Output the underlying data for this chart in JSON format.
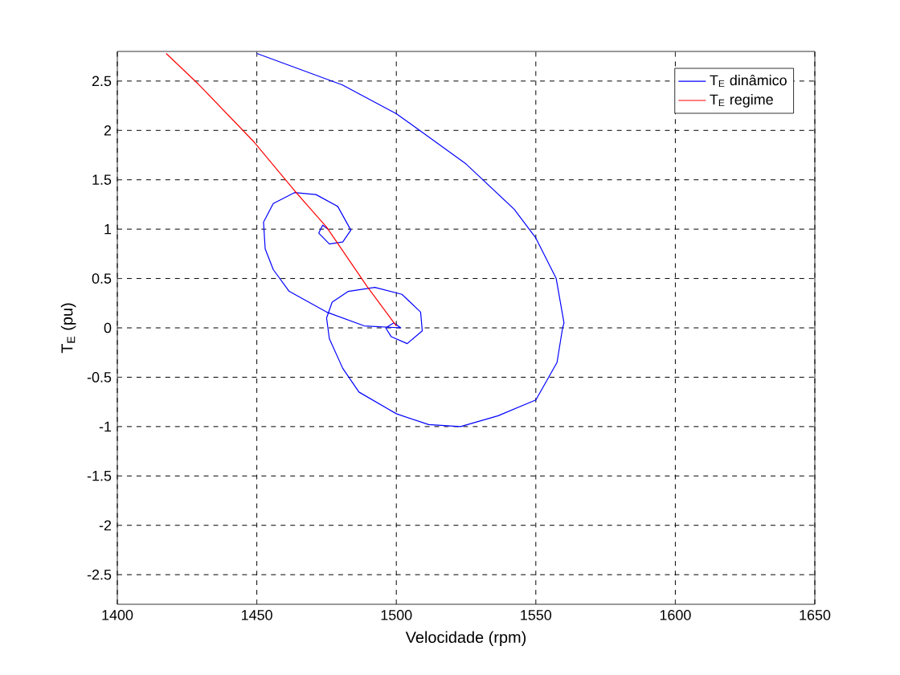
{
  "chart_data": {
    "type": "line",
    "xlabel": "Velocidade (rpm)",
    "ylabel": "T$_{E}$ (pu)",
    "xlim": [
      1400,
      1650
    ],
    "ylim": [
      -2.8,
      2.8
    ],
    "xticks": [
      1400,
      1450,
      1500,
      1550,
      1600,
      1650
    ],
    "yticks": [
      -2.5,
      -2,
      -1.5,
      -1,
      -0.5,
      0,
      0.5,
      1,
      1.5,
      2,
      2.5
    ],
    "grid": true,
    "legend": "top right",
    "series": [
      {
        "name": "T$_{E}$ dinâmico",
        "color": "#0000ff",
        "x": [
          1450,
          1480.7,
          1500,
          1525,
          1542.3,
          1550,
          1557.3,
          1560.1,
          1559.6,
          1557.6,
          1550,
          1536.5,
          1523,
          1511.6,
          1500,
          1486.6,
          1480.8,
          1476,
          1475,
          1477,
          1482.8,
          1492.3,
          1502,
          1508.7,
          1509.3,
          1503.9,
          1498.2,
          1496.2,
          1499.1,
          1501.6,
          1488.5,
          1475,
          1461.6,
          1455.9,
          1453,
          1452.4,
          1455.9,
          1463.5,
          1471.2,
          1479,
          1483.7,
          1480.8,
          1476,
          1472.2,
          1473.6,
          1475.5
        ],
        "values": [
          2.78,
          2.46,
          2.17,
          1.66,
          1.2,
          0.91,
          0.5,
          0.05,
          0,
          -0.35,
          -0.73,
          -0.89,
          -1,
          -0.98,
          -0.87,
          -0.65,
          -0.41,
          -0.11,
          0.1,
          0.26,
          0.37,
          0.41,
          0.34,
          0.16,
          -0.03,
          -0.16,
          -0.09,
          0,
          0.05,
          0,
          0.02,
          0.16,
          0.37,
          0.59,
          0.8,
          1.07,
          1.26,
          1.37,
          1.35,
          1.23,
          0.99,
          0.87,
          0.85,
          0.96,
          1.04,
          1
        ]
      },
      {
        "name": "T$_{E}$ regime",
        "color": "#ff0000",
        "x": [
          1417.5,
          1429,
          1449.1,
          1463.5,
          1475,
          1489.5,
          1500
        ],
        "values": [
          2.78,
          2.47,
          1.88,
          1.39,
          1.02,
          0.42,
          0.02
        ]
      }
    ]
  }
}
